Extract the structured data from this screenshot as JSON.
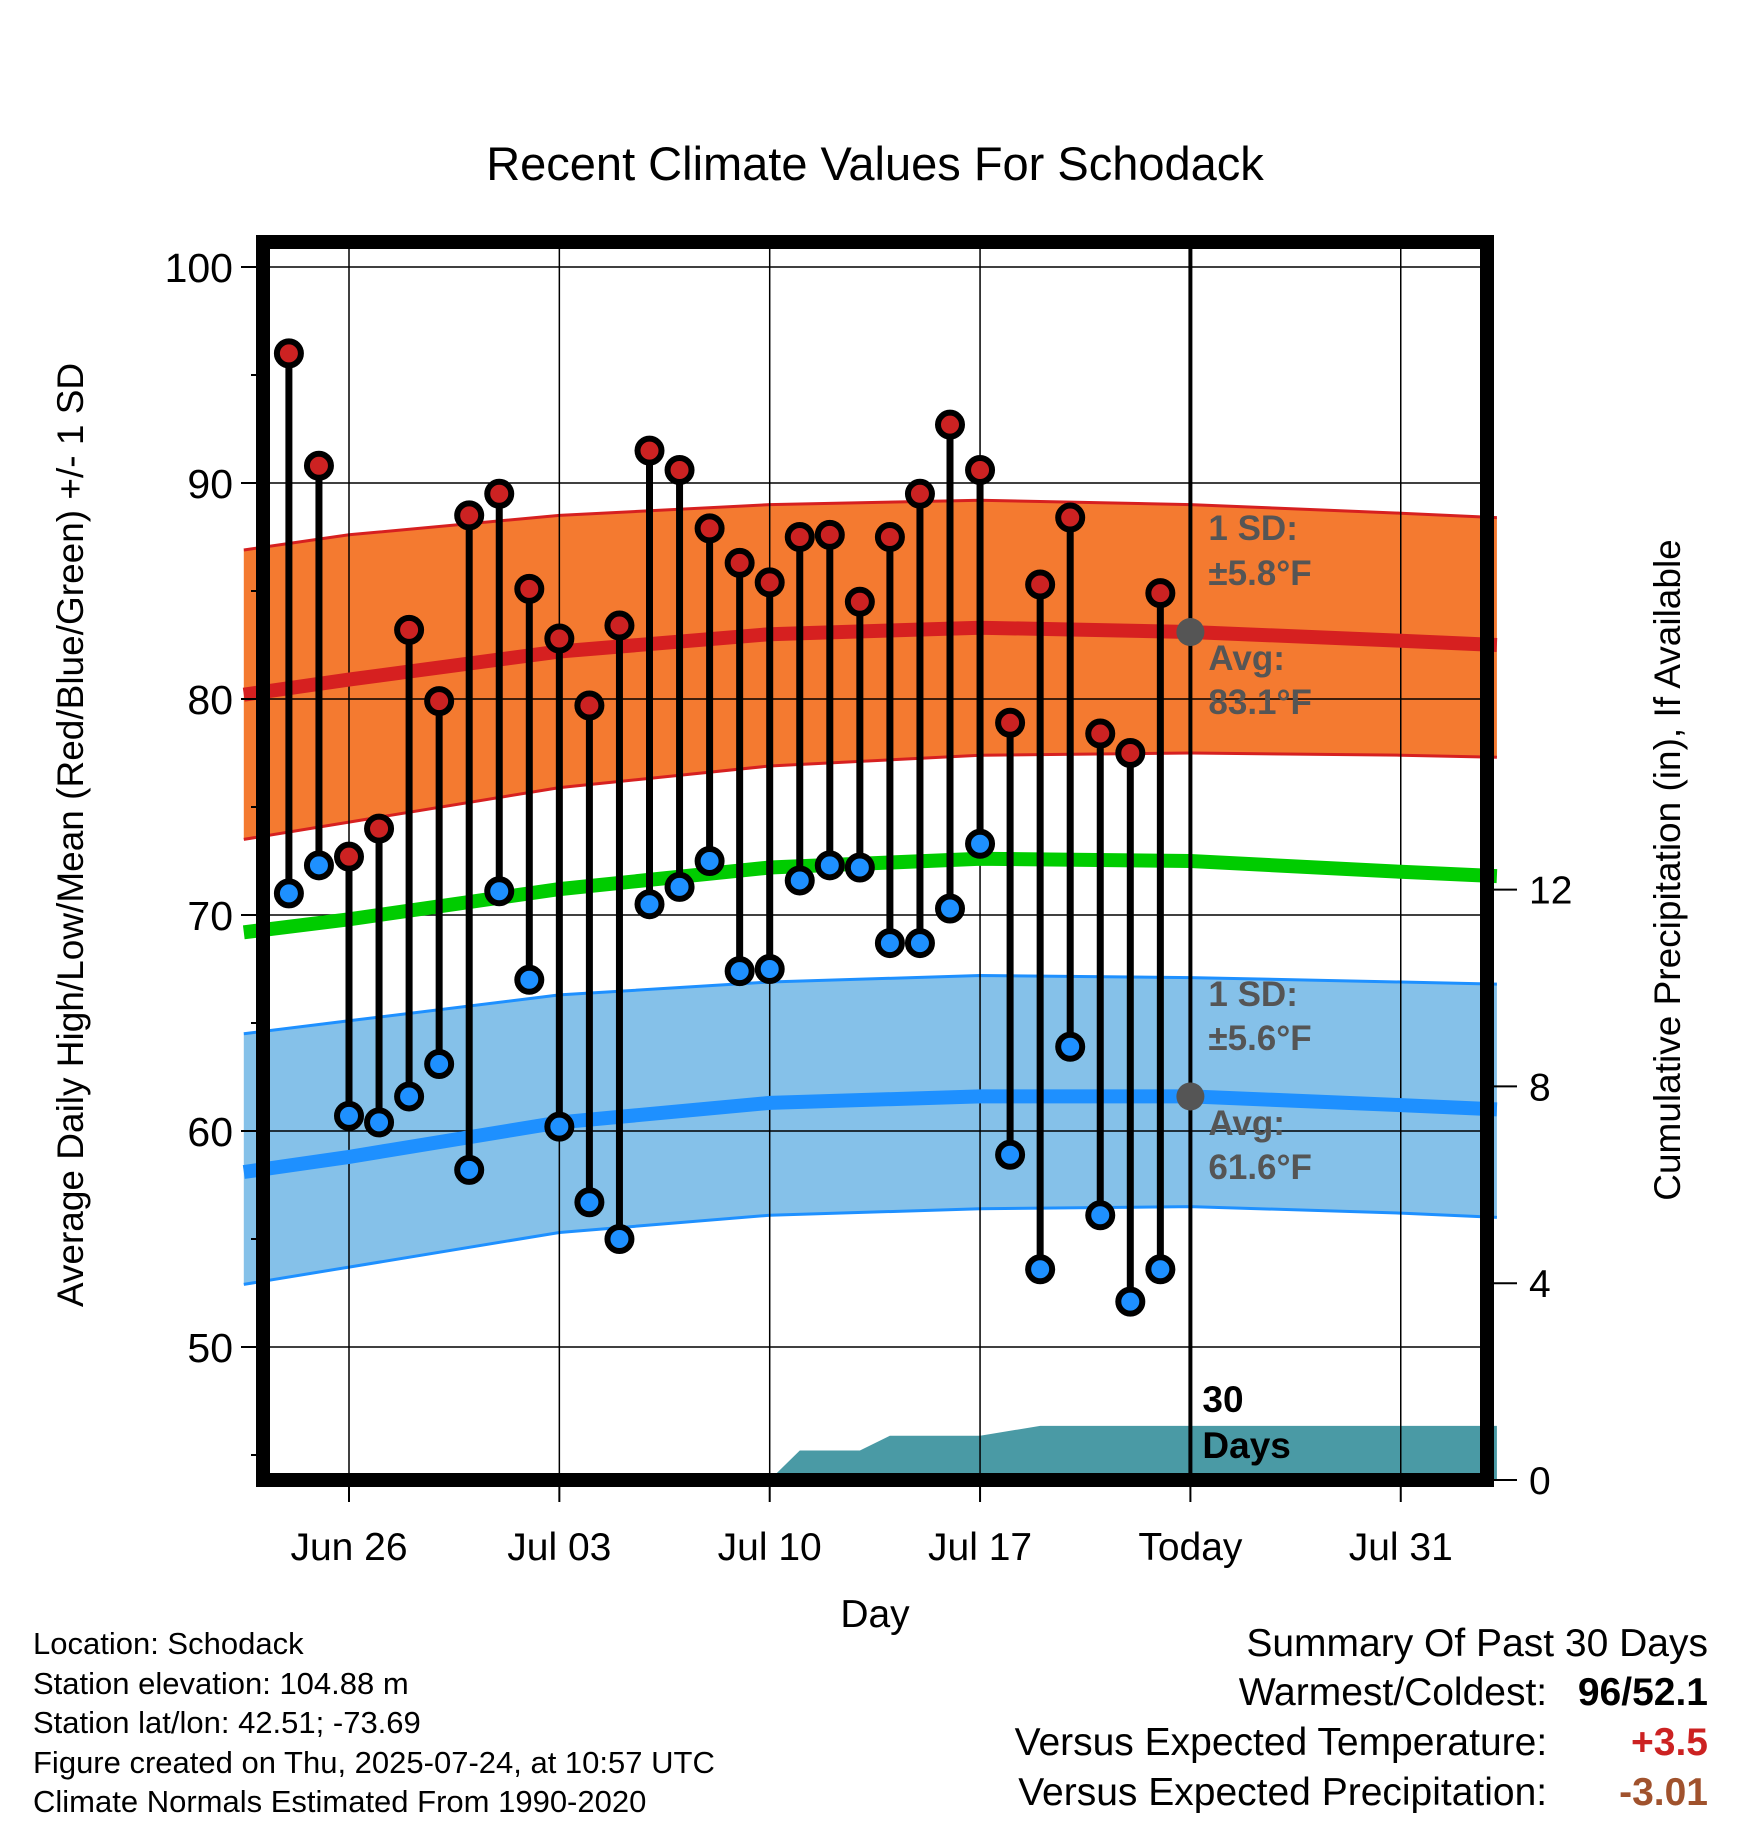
{
  "chart_data": {
    "type": "line",
    "title": "Recent Climate Values For Schodack",
    "xlabel": "Day",
    "ylabel": "Average Daily High/Low/Mean (Red/Blue/Green) +/- 1 SD",
    "y2label": "Cumulative Precipitation (in), If Available",
    "ylim": [
      44.5,
      102
    ],
    "y2lim": [
      0,
      18
    ],
    "yticks": [
      50,
      60,
      70,
      80,
      90,
      100
    ],
    "y2ticks": [
      0,
      4,
      8,
      12
    ],
    "xlim": [
      -3.5,
      38.2
    ],
    "xticks": [
      {
        "day": 0,
        "label": "Jun 26"
      },
      {
        "day": 7,
        "label": "Jul 03"
      },
      {
        "day": 14,
        "label": "Jul 10"
      },
      {
        "day": 21,
        "label": "Jul 17"
      },
      {
        "day": 28,
        "label": "Today"
      },
      {
        "day": 35,
        "label": "Jul 31"
      }
    ],
    "grid": true,
    "today_day": 28,
    "days": [
      -2,
      -1,
      0,
      1,
      2,
      3,
      4,
      5,
      6,
      7,
      8,
      9,
      10,
      11,
      12,
      13,
      14,
      15,
      16,
      17,
      18,
      19,
      20,
      21,
      22,
      23,
      24,
      25,
      26,
      27
    ],
    "daily_high": [
      96.0,
      90.8,
      72.7,
      74.0,
      83.2,
      79.9,
      88.5,
      89.5,
      85.1,
      82.8,
      79.7,
      83.4,
      91.5,
      90.6,
      87.9,
      86.3,
      85.4,
      87.5,
      87.6,
      84.5,
      87.5,
      89.5,
      92.7,
      90.6,
      78.9,
      85.3,
      88.4,
      78.4,
      77.5,
      84.9
    ],
    "daily_low": [
      71.0,
      72.3,
      60.7,
      60.4,
      61.6,
      63.1,
      58.2,
      71.1,
      67.0,
      60.2,
      56.7,
      55.0,
      70.5,
      71.3,
      72.5,
      67.4,
      67.5,
      71.6,
      72.3,
      72.2,
      68.7,
      68.7,
      70.3,
      73.3,
      58.9,
      53.6,
      63.9,
      56.1,
      52.1,
      53.6
    ],
    "normal_days": [
      -3.5,
      0,
      7,
      14,
      21,
      28,
      35,
      38.2
    ],
    "normal_high": [
      80.2,
      80.9,
      82.2,
      83.0,
      83.3,
      83.1,
      82.7,
      82.5
    ],
    "normal_high_plus_sd": [
      86.9,
      87.6,
      88.5,
      89.0,
      89.2,
      89.0,
      88.6,
      88.4
    ],
    "normal_high_minus_sd": [
      73.5,
      74.3,
      75.9,
      76.9,
      77.4,
      77.5,
      77.4,
      77.3
    ],
    "normal_mean": [
      69.2,
      69.8,
      71.2,
      72.2,
      72.6,
      72.5,
      72.0,
      71.8
    ],
    "normal_low": [
      58.1,
      58.8,
      60.4,
      61.3,
      61.6,
      61.6,
      61.2,
      61.0
    ],
    "normal_low_plus_sd": [
      64.5,
      65.1,
      66.3,
      66.9,
      67.2,
      67.1,
      66.9,
      66.8
    ],
    "normal_low_minus_sd": [
      52.9,
      53.7,
      55.3,
      56.1,
      56.4,
      56.5,
      56.2,
      56.0
    ],
    "precip_days": [
      14,
      15,
      17,
      18,
      21,
      23,
      24,
      38.2
    ],
    "precip_cumulative": [
      0,
      0.6,
      0.6,
      0.9,
      0.9,
      1.1,
      1.1,
      1.1
    ],
    "annotations": {
      "high_sd": "1 SD:",
      "high_sd_value": "±5.8°F",
      "high_avg": "Avg:",
      "high_avg_value": "83.1°F",
      "low_sd": "1 SD:",
      "low_sd_value": "±5.6°F",
      "low_avg": "Avg:",
      "low_avg_value": "61.6°F",
      "period_number": "30",
      "period_unit": "Days"
    },
    "colors": {
      "high": "#d62020",
      "high_band": "#f47a30",
      "mean": "#00cc00",
      "low": "#1e90ff",
      "low_band": "#85c1e9",
      "precip": "#4a9aa5",
      "marker_high": "#cc2222",
      "marker_low": "#1e90ff",
      "annotation": "#555555"
    }
  },
  "footer": {
    "location": "Location: Schodack",
    "elevation": "Station elevation: 104.88 m",
    "latlon": "Station lat/lon: 42.51; -73.69",
    "created": "Figure created on Thu, 2025-07-24, at 10:57 UTC",
    "normals": "Climate Normals Estimated From 1990-2020"
  },
  "summary": {
    "title": "Summary Of Past 30 Days",
    "warm_cold_label": "Warmest/Coldest:",
    "warmest": "96",
    "slash": "/",
    "coldest": "52.1",
    "temp_label": "Versus Expected Temperature:",
    "temp_value": "+3.5",
    "temp_color": "#cc2222",
    "precip_label": "Versus Expected Precipitation:",
    "precip_value": "-3.01",
    "precip_color": "#a0522d"
  }
}
